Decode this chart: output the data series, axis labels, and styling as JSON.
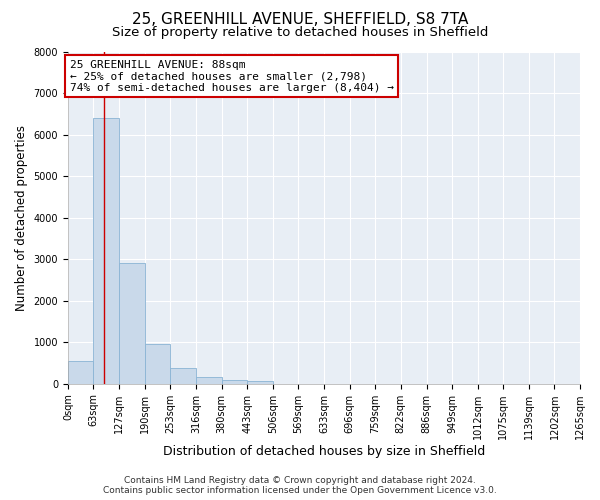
{
  "title": "25, GREENHILL AVENUE, SHEFFIELD, S8 7TA",
  "subtitle": "Size of property relative to detached houses in Sheffield",
  "xlabel": "Distribution of detached houses by size in Sheffield",
  "ylabel": "Number of detached properties",
  "bar_values": [
    550,
    6400,
    2900,
    950,
    370,
    160,
    100,
    65,
    0,
    0,
    0,
    0,
    0,
    0,
    0,
    0,
    0,
    0,
    0,
    0
  ],
  "bin_edges": [
    0,
    63,
    127,
    190,
    253,
    316,
    380,
    443,
    506,
    569,
    633,
    696,
    759,
    822,
    886,
    949,
    1012,
    1075,
    1139,
    1202,
    1265
  ],
  "tick_labels": [
    "0sqm",
    "63sqm",
    "127sqm",
    "190sqm",
    "253sqm",
    "316sqm",
    "380sqm",
    "443sqm",
    "506sqm",
    "569sqm",
    "633sqm",
    "696sqm",
    "759sqm",
    "822sqm",
    "886sqm",
    "949sqm",
    "1012sqm",
    "1075sqm",
    "1139sqm",
    "1202sqm",
    "1265sqm"
  ],
  "bar_color": "#c9d9ea",
  "bar_edge_color": "#8ab4d4",
  "ylim_max": 8000,
  "yticks": [
    0,
    1000,
    2000,
    3000,
    4000,
    5000,
    6000,
    7000,
    8000
  ],
  "red_line_x": 88,
  "annotation_title": "25 GREENHILL AVENUE: 88sqm",
  "annotation_line1": "← 25% of detached houses are smaller (2,798)",
  "annotation_line2": "74% of semi-detached houses are larger (8,404) →",
  "annotation_box_color": "#cc0000",
  "footer_line1": "Contains HM Land Registry data © Crown copyright and database right 2024.",
  "footer_line2": "Contains public sector information licensed under the Open Government Licence v3.0.",
  "plot_bg_color": "#e8eef5",
  "fig_bg_color": "#ffffff",
  "title_fontsize": 11,
  "subtitle_fontsize": 9.5,
  "ylabel_fontsize": 8.5,
  "xlabel_fontsize": 9,
  "tick_fontsize": 7,
  "annotation_fontsize": 8,
  "footer_fontsize": 6.5
}
